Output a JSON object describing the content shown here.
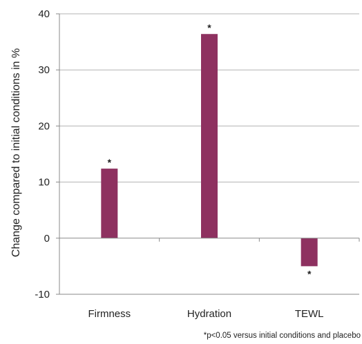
{
  "chart_data": {
    "type": "bar",
    "categories": [
      "Firmness",
      "Hydration",
      "TEWL"
    ],
    "values": [
      12.4,
      36.4,
      -5
    ],
    "annotations": [
      "*",
      "*",
      "*"
    ],
    "ylabel": "Change compared to initial conditions in %",
    "xlabel": "",
    "ylim": [
      -10,
      40
    ],
    "yticks": [
      -10,
      0,
      10,
      20,
      30,
      40
    ],
    "grid": true,
    "bar_color": "#8e3160",
    "footnote": "*p<0.05 versus initial conditions and placebo"
  }
}
